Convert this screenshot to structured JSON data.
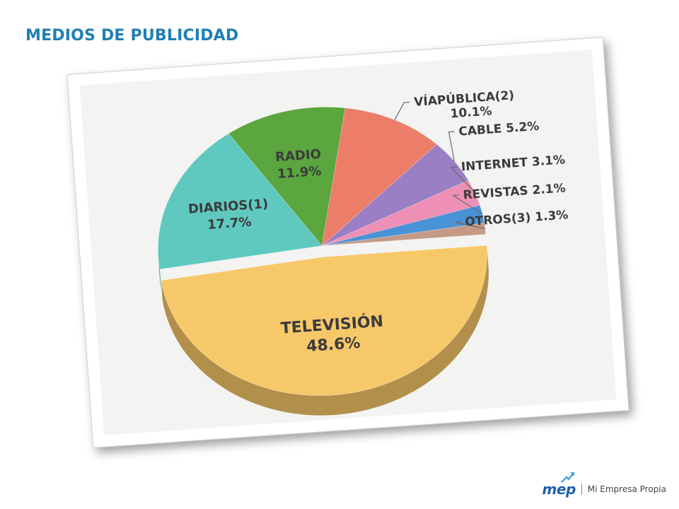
{
  "page": {
    "title": "MEDIOS DE PUBLICIDAD"
  },
  "logo": {
    "mark": "mep",
    "text": "Mi Empresa Propia"
  },
  "colors": {
    "title": "#1f7fb5",
    "television": "#f7c86a",
    "diarios": "#5fc9c0",
    "radio": "#5ba63e",
    "viapublica": "#ec7d68",
    "cable": "#9a7fc4",
    "internet": "#ee8fb5",
    "revistas": "#4a92d6",
    "otros": "#c49a86"
  },
  "chart_data": {
    "type": "pie",
    "title": "",
    "unit": "%",
    "slices": [
      {
        "label": "TELEVISIÓN",
        "value": 48.6,
        "value_label": "48.6%",
        "color": "#f7c86a",
        "label_style": "inside",
        "exploded": true
      },
      {
        "label": "DIARIOS(1)",
        "value": 17.7,
        "value_label": "17.7%",
        "color": "#5fc9c0",
        "label_style": "inside"
      },
      {
        "label": "RADIO",
        "value": 11.9,
        "value_label": "11.9%",
        "color": "#5ba63e",
        "label_style": "inside"
      },
      {
        "label": "VÍAPÚBLICA(2)",
        "value": 10.1,
        "value_label": "10.1%",
        "color": "#ec7d68",
        "label_style": "outside-two-line"
      },
      {
        "label": "CABLE",
        "value": 5.2,
        "value_label": "5.2%",
        "color": "#9a7fc4",
        "label_style": "outside"
      },
      {
        "label": "INTERNET",
        "value": 3.1,
        "value_label": "3.1%",
        "color": "#ee8fb5",
        "label_style": "outside"
      },
      {
        "label": "REVISTAS",
        "value": 2.1,
        "value_label": "2.1%",
        "color": "#4a92d6",
        "label_style": "outside"
      },
      {
        "label": "OTROS(3)",
        "value": 1.3,
        "value_label": "1.3%",
        "color": "#c49a86",
        "label_style": "outside"
      }
    ]
  }
}
